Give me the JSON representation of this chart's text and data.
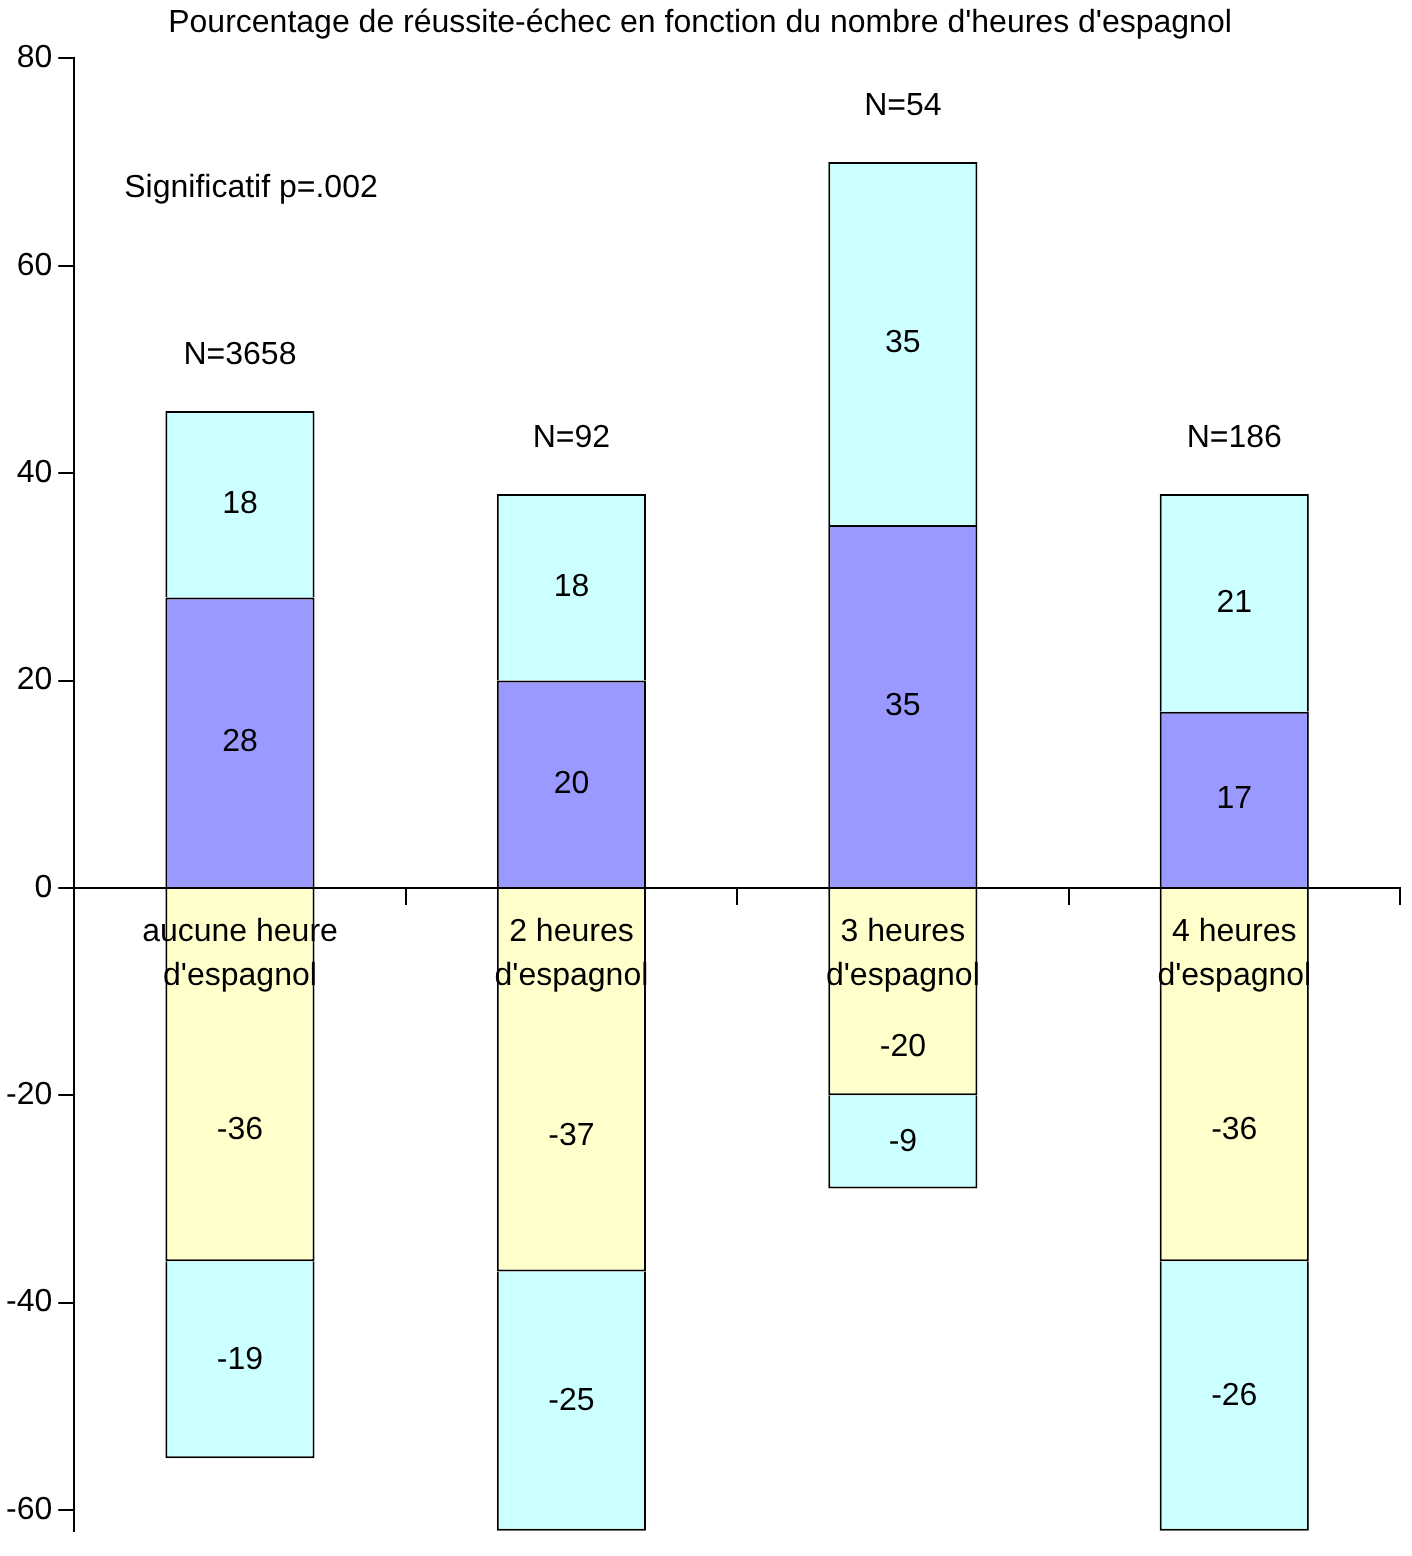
{
  "chart_data": {
    "type": "bar",
    "title": "Pourcentage de réussite-échec en fonction du nombre d'heures d'espagnol",
    "categories": [
      "aucune heure d'espagnol",
      "2 heures d'espagnol",
      "3 heures d'espagnol",
      "4 heures d'espagnol"
    ],
    "stacked": true,
    "series": [
      {
        "color": "#9999ff",
        "values": [
          28,
          20,
          35,
          17
        ]
      },
      {
        "color": "#ccffff",
        "values": [
          18,
          18,
          35,
          21
        ]
      },
      {
        "color": "#ffffcc",
        "values": [
          -36,
          -37,
          -20,
          -36
        ]
      },
      {
        "color": "#ccffff",
        "values": [
          -19,
          -25,
          -9,
          -26
        ]
      }
    ],
    "data_labels": true,
    "ylim": [
      -62,
      80
    ],
    "yticks": [
      -60,
      -40,
      -20,
      0,
      20,
      40,
      60,
      80
    ],
    "grid": false,
    "legend": false,
    "annotations": [
      "N=3658",
      "N=92",
      "N=54",
      "N=186",
      "Significatif p=.002"
    ]
  }
}
